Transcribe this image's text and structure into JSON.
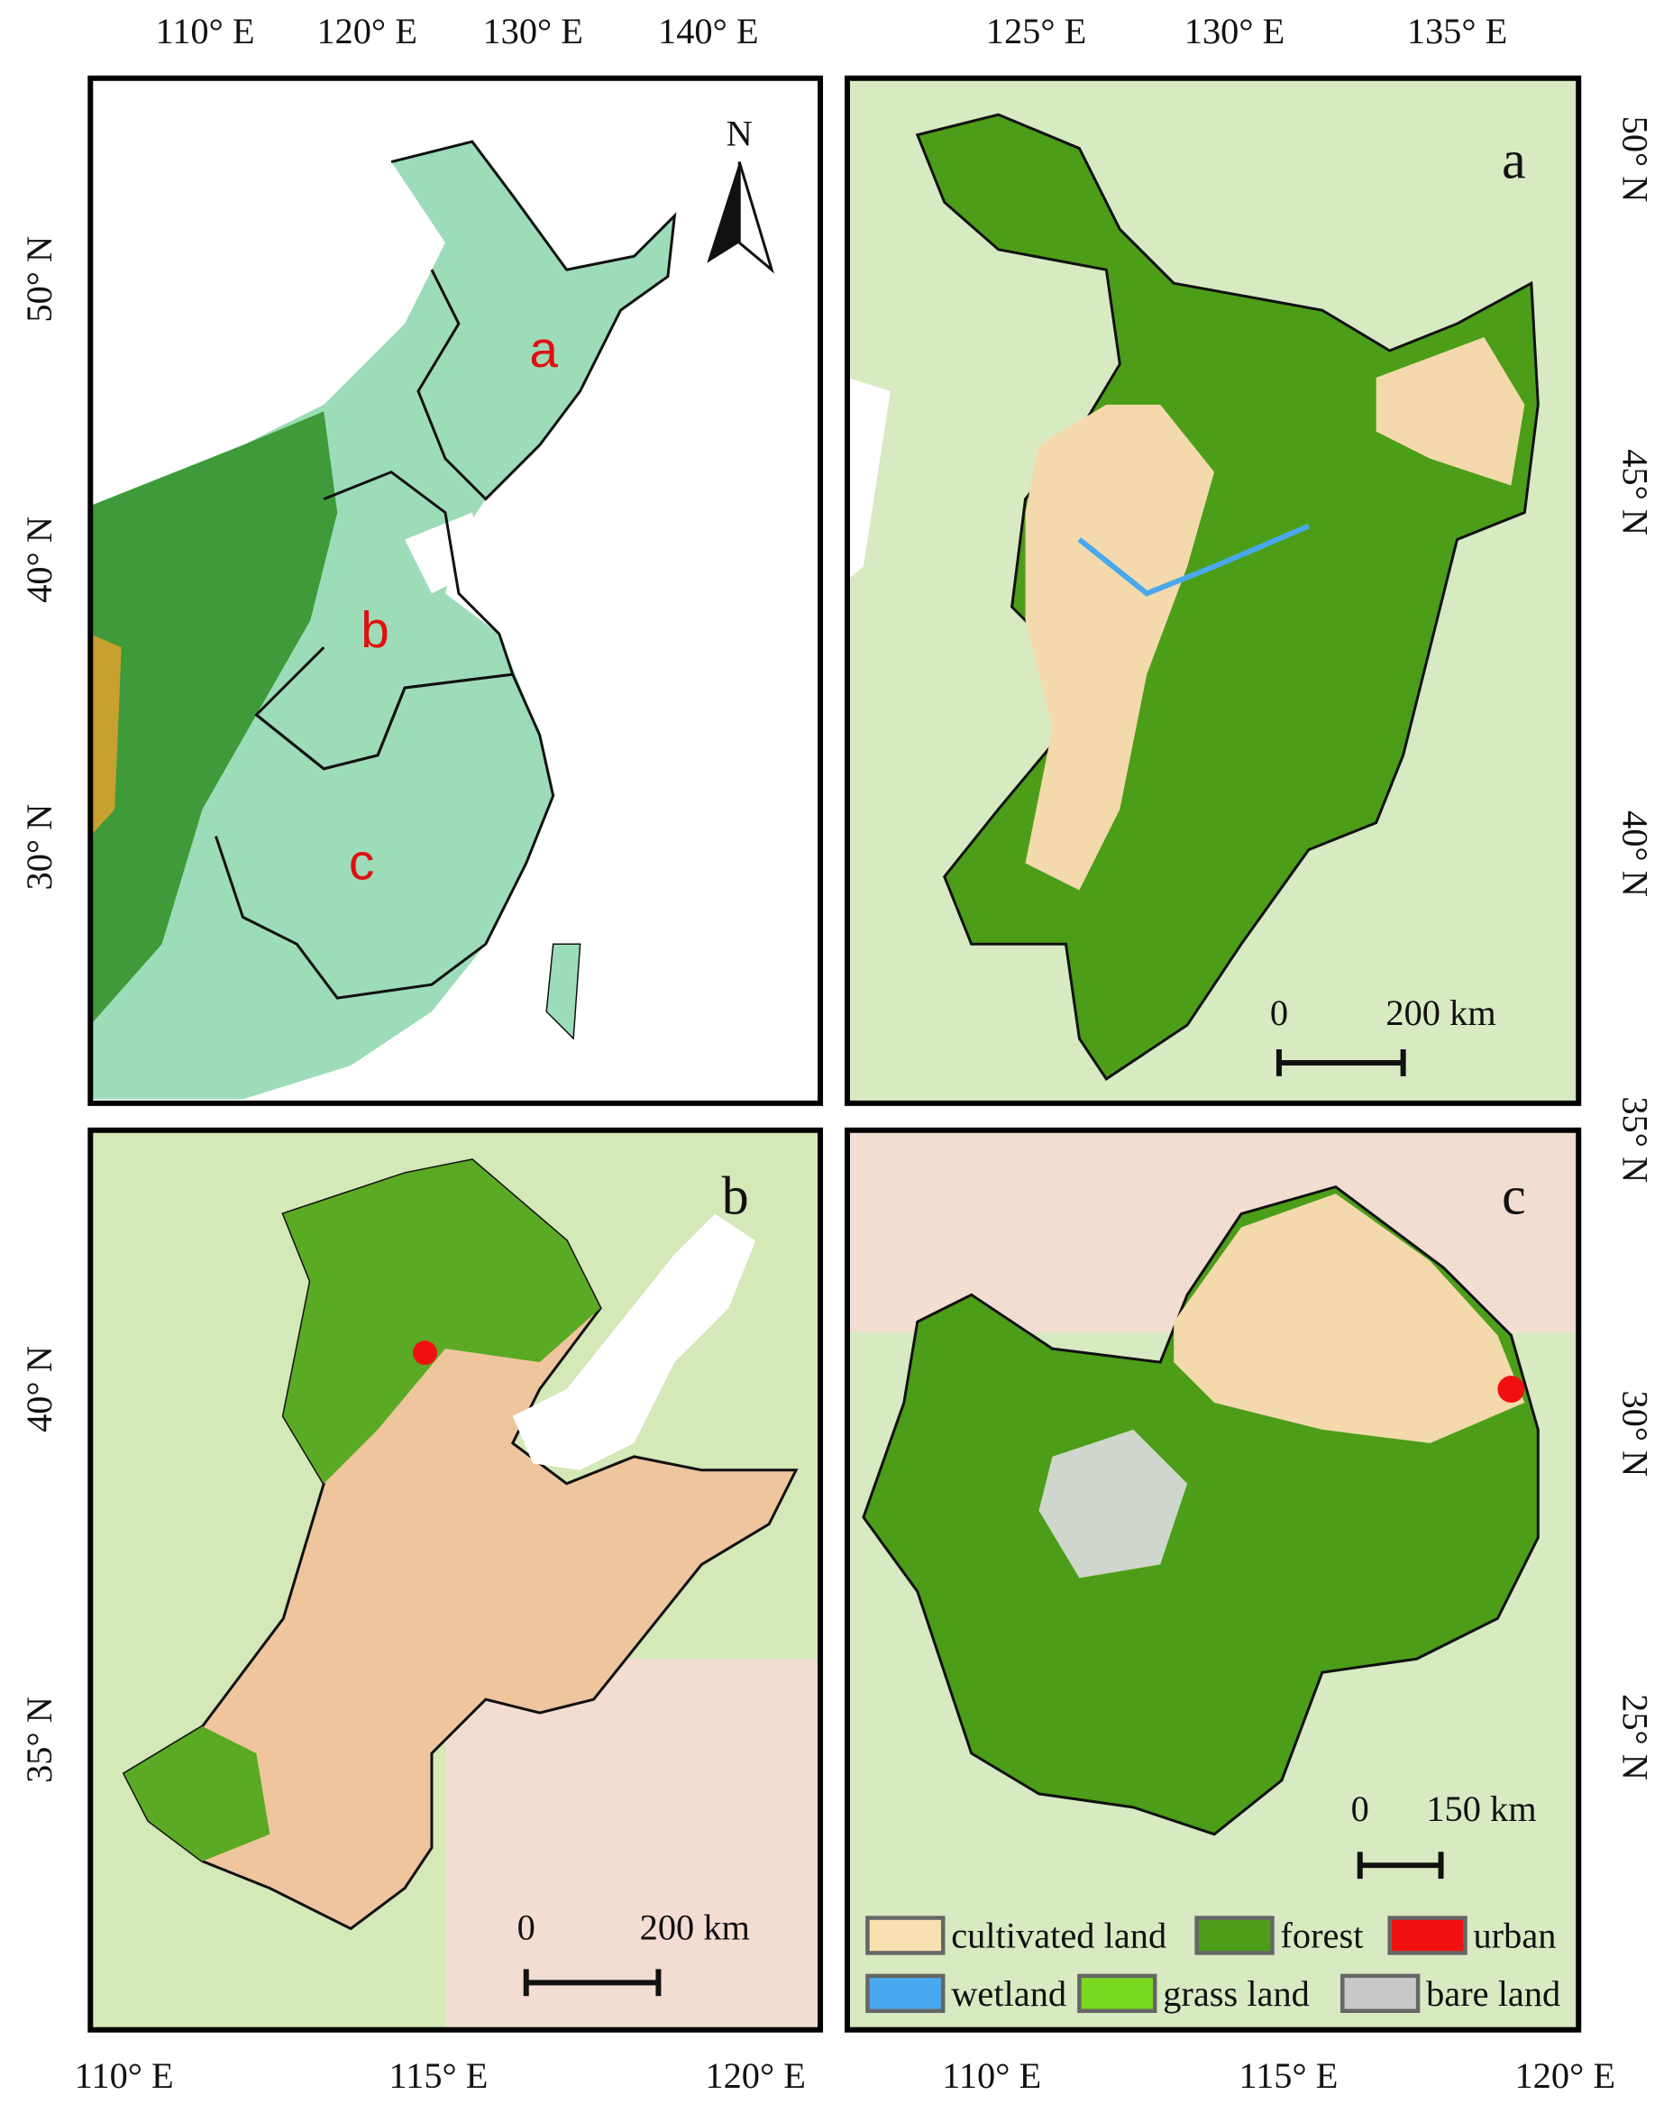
{
  "overview": {
    "north": "N",
    "regions": [
      "a",
      "b",
      "c"
    ],
    "top_labels": [
      "110° E",
      "120° E",
      "130° E",
      "140° E"
    ],
    "left_labels": [
      "50° N",
      "40° N",
      "30° N"
    ]
  },
  "panel_a": {
    "label": "a",
    "top_labels": [
      "125° E",
      "130° E",
      "135° E"
    ],
    "right_labels": [
      "50° N",
      "45° N",
      "40° N"
    ],
    "scale": {
      "start": "0",
      "end": "200 km"
    }
  },
  "panel_b": {
    "label": "b",
    "left_labels": [
      "40° N",
      "35° N"
    ],
    "bottom_labels": [
      "110° E",
      "115° E",
      "120° E"
    ],
    "scale": {
      "start": "0",
      "end": "200 km"
    }
  },
  "panel_c": {
    "label": "c",
    "right_labels": [
      "35° N",
      "30° N",
      "25° N"
    ],
    "bottom_labels": [
      "110° E",
      "115° E",
      "120° E"
    ],
    "scale": {
      "start": "0",
      "end": "150 km"
    }
  },
  "legend": [
    {
      "name": "cultivated land",
      "color": "#f7e1b0"
    },
    {
      "name": "forest",
      "color": "#4c9e18"
    },
    {
      "name": "urban",
      "color": "#f01010"
    },
    {
      "name": "wetland",
      "color": "#4aa8ef"
    },
    {
      "name": "grass land",
      "color": "#78d820"
    },
    {
      "name": "bare land",
      "color": "#c8c8c8"
    }
  ]
}
